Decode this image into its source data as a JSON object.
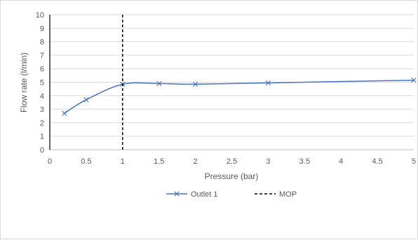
{
  "chart_data": {
    "type": "line",
    "title": "",
    "xlabel": "Pressure (bar)",
    "ylabel": "Flow rate (l/min)",
    "xlim": [
      0,
      5
    ],
    "ylim": [
      0,
      10
    ],
    "x_ticks": [
      "0",
      "0.5",
      "1",
      "1.5",
      "2",
      "2.5",
      "3",
      "3.5",
      "4",
      "4.5",
      "5"
    ],
    "y_ticks": [
      "0",
      "1",
      "2",
      "3",
      "4",
      "5",
      "6",
      "7",
      "8",
      "9",
      "10"
    ],
    "grid": "horizontal",
    "legend_position": "bottom",
    "series": [
      {
        "name": "Outlet 1",
        "color": "#4472c4",
        "marker": "x",
        "smooth": true,
        "x": [
          0.2,
          0.5,
          1.0,
          1.5,
          2.0,
          3.0,
          5.0
        ],
        "y": [
          2.7,
          3.7,
          4.85,
          4.9,
          4.85,
          4.95,
          5.15
        ]
      },
      {
        "name": "MOP",
        "color": "#000000",
        "style": "dashed",
        "x": [
          1.0,
          1.0
        ],
        "y": [
          0,
          10
        ]
      }
    ]
  }
}
